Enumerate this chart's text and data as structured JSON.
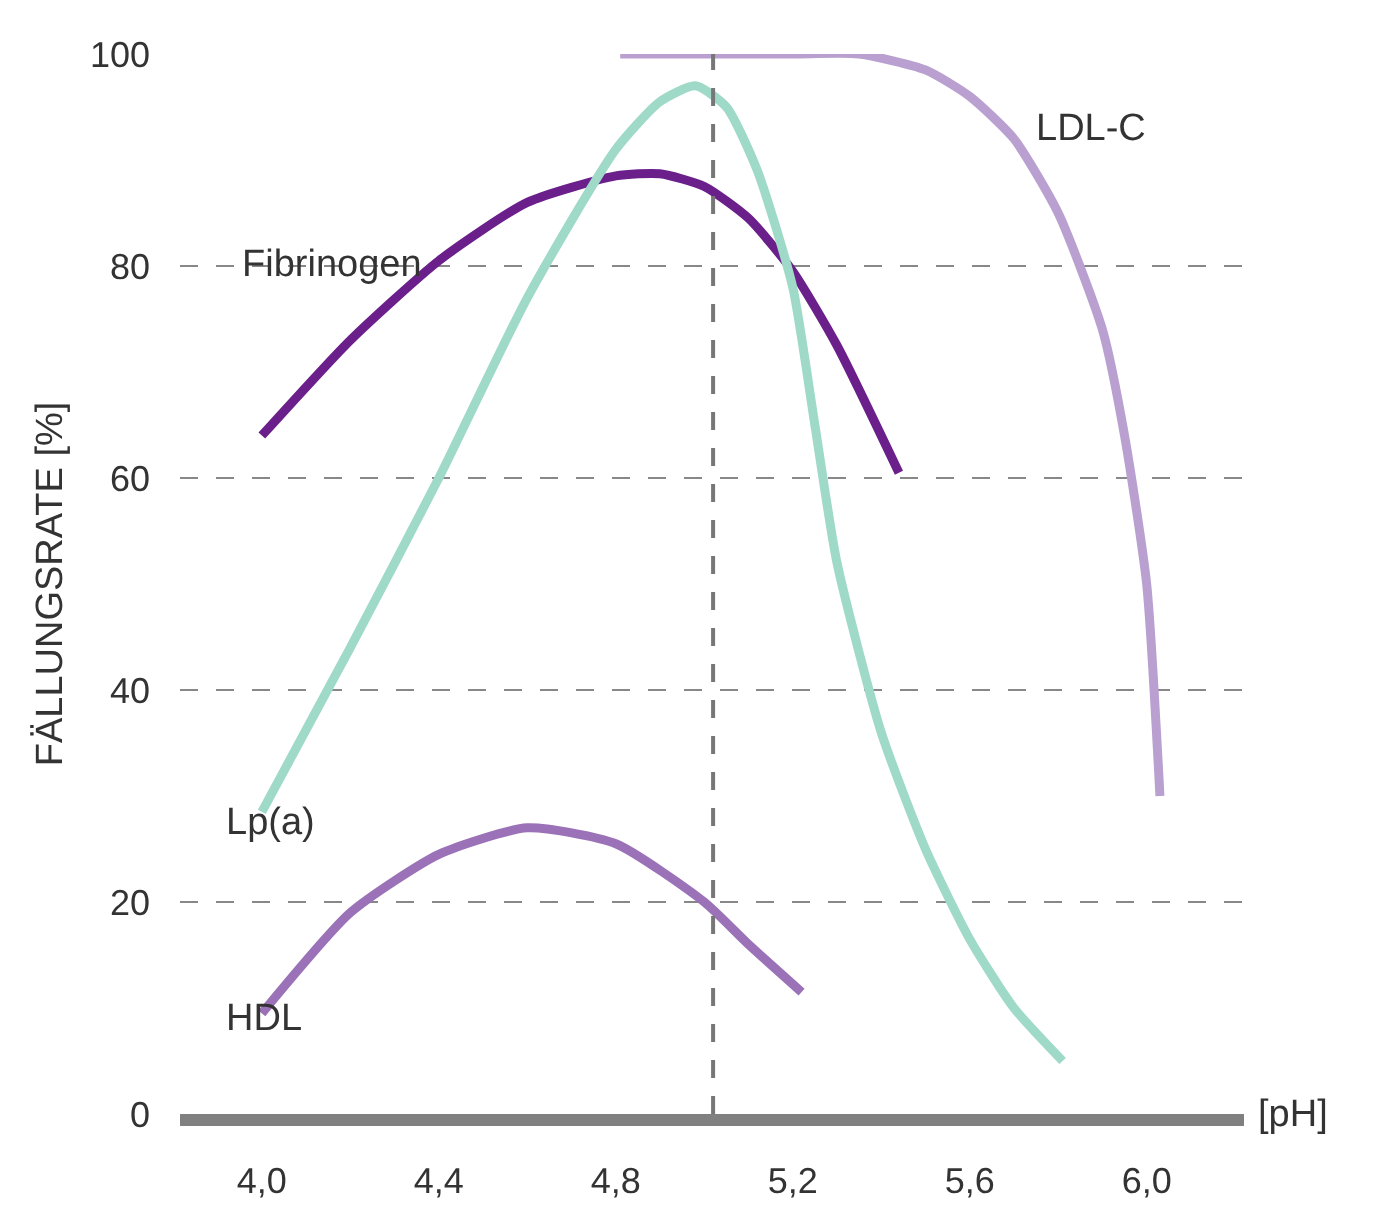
{
  "chart_data": {
    "type": "line",
    "xlabel": "[pH]",
    "ylabel": "FÄLLUNGSRATE [%]",
    "xlim": [
      3.815,
      6.22
    ],
    "ylim": [
      0,
      100
    ],
    "xticks": [
      {
        "value": 4.0,
        "label": "4,0"
      },
      {
        "value": 4.4,
        "label": "4,4"
      },
      {
        "value": 4.8,
        "label": "4,8"
      },
      {
        "value": 5.2,
        "label": "5,2"
      },
      {
        "value": 5.6,
        "label": "5,6"
      },
      {
        "value": 6.0,
        "label": "6,0"
      }
    ],
    "yticks": [
      0,
      20,
      40,
      60,
      80,
      100
    ],
    "grid": "y",
    "legend": false,
    "marker": "none",
    "line_style": "solid",
    "ref_lines": [
      {
        "axis": "x",
        "value": 5.02,
        "color": "#777777",
        "line_style": "dashed"
      }
    ],
    "series": [
      {
        "name": "Fibrinogen",
        "color": "#6a1f8a",
        "x": [
          4.0,
          4.2,
          4.4,
          4.6,
          4.8,
          4.9,
          5.0,
          5.1,
          5.2,
          5.3,
          5.44
        ],
        "values": [
          64,
          73,
          80.5,
          86,
          88.5,
          88.7,
          87.5,
          84.5,
          79.5,
          72.5,
          60.5
        ]
      },
      {
        "name": "LDL-C",
        "color": "#b9a0d0",
        "x": [
          4.81,
          5.0,
          5.2,
          5.35,
          5.5,
          5.6,
          5.7,
          5.8,
          5.9,
          5.95,
          6.0,
          6.03
        ],
        "values": [
          100,
          100,
          100,
          100,
          98.5,
          96,
          92,
          85,
          74,
          64,
          50,
          30
        ]
      },
      {
        "name": "Lp(a)",
        "color": "#9fd9c8",
        "x": [
          4.0,
          4.2,
          4.4,
          4.6,
          4.8,
          4.9,
          4.98,
          5.05,
          5.12,
          5.2,
          5.25,
          5.3,
          5.4,
          5.5,
          5.6,
          5.7,
          5.81
        ],
        "values": [
          28.5,
          44,
          60,
          77,
          91,
          95.5,
          97,
          95,
          89,
          78,
          65,
          52,
          36,
          25,
          16.5,
          10,
          5
        ]
      },
      {
        "name": "HDL",
        "color": "#9b72b8",
        "x": [
          4.0,
          4.2,
          4.4,
          4.6,
          4.8,
          5.0,
          5.1,
          5.22
        ],
        "values": [
          9.5,
          19,
          24.5,
          27,
          25.5,
          20,
          16,
          11.5
        ]
      }
    ]
  }
}
